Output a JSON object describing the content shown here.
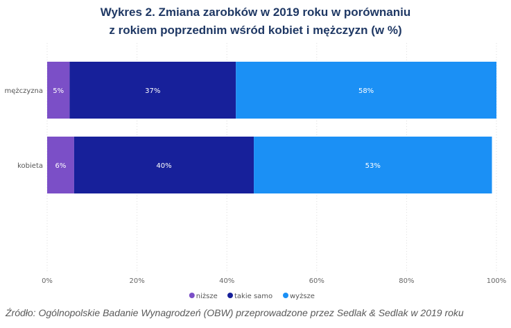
{
  "chart_data": {
    "type": "bar",
    "orientation": "horizontal",
    "stacked": true,
    "title": [
      "Wykres 2. Zmiana zarobków w 2019 roku w porównaniu",
      "z rokiem poprzednim wśród kobiet i mężczyzn (w %)"
    ],
    "categories": [
      "mężczyzna",
      "kobieta"
    ],
    "series": [
      {
        "name": "niższe",
        "values": [
          5,
          6
        ],
        "labels": [
          "5%",
          "6%"
        ],
        "color": "#7b4fc7"
      },
      {
        "name": "takie samo",
        "values": [
          37,
          40
        ],
        "labels": [
          "37%",
          "40%"
        ],
        "color": "#17209a"
      },
      {
        "name": "wyższe",
        "values": [
          58,
          53
        ],
        "labels": [
          "58%",
          "53%"
        ],
        "color": "#1b90f5"
      }
    ],
    "xlim": [
      0,
      100
    ],
    "xticks": [
      "0%",
      "20%",
      "40%",
      "60%",
      "80%",
      "100%"
    ],
    "grid": true,
    "legend_position": "bottom"
  },
  "source": "Źródło: Ogólnopolskie Badanie Wynagrodzeń (OBW) przeprowadzone przez Sedlak & Sedlak w 2019 roku"
}
